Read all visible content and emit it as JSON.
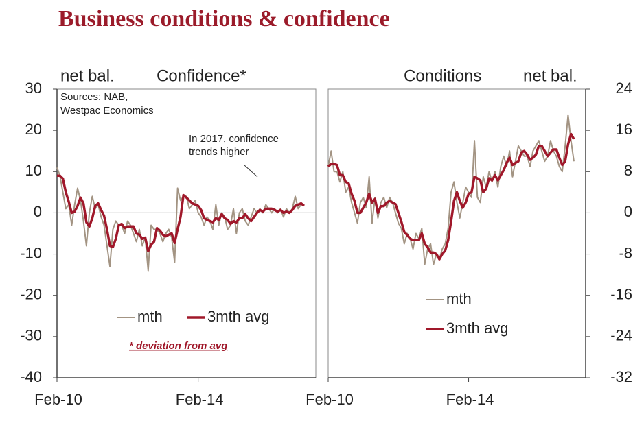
{
  "title": "Business conditions & confidence",
  "chart_data": [
    {
      "type": "line",
      "title": "Confidence*",
      "ylabel": "net bal.",
      "sources": [
        "Sources: NAB,",
        "Westpac Economics"
      ],
      "annotation": [
        "In 2017, confidence",
        "trends higher"
      ],
      "note": "* deviation from avg",
      "legend": "lower center",
      "yaxis": "left",
      "zero_line": true,
      "categories": [
        "Feb-10",
        null,
        null,
        null,
        null,
        null,
        null,
        null,
        null,
        null,
        null,
        null,
        null,
        null,
        null,
        null,
        null,
        null,
        null,
        null,
        null,
        null,
        null,
        null,
        null,
        null,
        null,
        null,
        null,
        null,
        null,
        null,
        null,
        null,
        null,
        null,
        null,
        null,
        null,
        null,
        null,
        null,
        null,
        null,
        null,
        null,
        null,
        null,
        "Feb-14",
        null,
        null,
        null,
        null,
        null,
        null,
        null,
        null,
        null,
        null,
        null,
        null,
        null,
        null,
        null,
        null,
        null,
        null,
        null,
        null,
        null,
        null,
        null,
        null,
        null,
        null,
        null,
        null,
        null,
        null,
        null,
        null,
        null,
        null,
        null,
        null
      ],
      "series": [
        {
          "name": "mth",
          "color": "#a39483",
          "width": 2,
          "values": [
            11,
            9,
            5,
            1,
            2,
            -3,
            2,
            6,
            3,
            -2,
            -8,
            0,
            4,
            1,
            2,
            -1,
            -3,
            -8,
            -13,
            -4,
            -2,
            -3,
            -3,
            -5,
            -2,
            -3,
            -5,
            -7,
            -4,
            -8,
            -6,
            -14,
            -3,
            -4,
            -4,
            -5,
            -7,
            -5,
            -4,
            -6,
            -12,
            6,
            3,
            4,
            4,
            1,
            2,
            3,
            0,
            -1,
            -3,
            -1,
            -2,
            -4,
            2,
            -3,
            0,
            -1,
            -4,
            -3,
            1,
            -5,
            0,
            1,
            -2,
            -3,
            -1,
            1,
            0,
            1,
            0,
            2,
            1,
            0,
            1,
            0,
            1,
            -1,
            1,
            0,
            1,
            4,
            1,
            2,
            2
          ]
        },
        {
          "name": "3mth avg",
          "color": "#a0182a",
          "width": 3.5,
          "values": [
            9,
            9,
            8.3,
            5,
            2.7,
            0,
            0.3,
            1.7,
            3.7,
            2.3,
            -2.3,
            -3.3,
            -1.3,
            1.7,
            2.3,
            0.7,
            -0.7,
            -4,
            -8,
            -8.3,
            -6.3,
            -3,
            -2.7,
            -3.7,
            -3.3,
            -3.3,
            -3.3,
            -5,
            -5.3,
            -6.3,
            -6,
            -9.3,
            -7.7,
            -7,
            -3.7,
            -4.3,
            -5.3,
            -5.7,
            -5.3,
            -5,
            -7.3,
            -4,
            -1,
            4.3,
            3.7,
            3,
            2.3,
            2,
            1.7,
            0.7,
            -1.3,
            -1.7,
            -2,
            -2.3,
            -1.3,
            -1.7,
            -0.3,
            -1.3,
            -1.7,
            -2.7,
            -2,
            -2.3,
            -1.3,
            -1.3,
            -0.3,
            -1.3,
            -2,
            -1,
            0,
            0.7,
            0.3,
            1,
            1,
            1,
            0.7,
            0.3,
            0.7,
            0,
            0.3,
            0,
            0.7,
            1.7,
            2,
            2.3,
            1.7
          ]
        }
      ],
      "ylim": [
        -40,
        30
      ],
      "yticks": [
        -40,
        -30,
        -20,
        -10,
        0,
        10,
        20,
        30
      ]
    },
    {
      "type": "line",
      "title": "Conditions",
      "ylabel": "net bal.",
      "legend": "lower left",
      "yaxis": "right",
      "zero_line": false,
      "categories": [
        "Feb-10",
        null,
        null,
        null,
        null,
        null,
        null,
        null,
        null,
        null,
        null,
        null,
        null,
        null,
        null,
        null,
        null,
        null,
        null,
        null,
        null,
        null,
        null,
        null,
        null,
        null,
        null,
        null,
        null,
        null,
        null,
        null,
        null,
        null,
        null,
        null,
        null,
        null,
        null,
        null,
        null,
        null,
        null,
        null,
        null,
        null,
        null,
        null,
        "Feb-14",
        null,
        null,
        null,
        null,
        null,
        null,
        null,
        null,
        null,
        null,
        null,
        null,
        null,
        null,
        null,
        null,
        null,
        null,
        null,
        null,
        null,
        null,
        null,
        null,
        null,
        null,
        null,
        null,
        null,
        null,
        null,
        null,
        null,
        null,
        null,
        null
      ],
      "series": [
        {
          "name": "mth",
          "color": "#a39483",
          "width": 2,
          "values": [
            9,
            12,
            8,
            8,
            6,
            8,
            4,
            5,
            2,
            0,
            -2,
            2,
            3,
            1,
            7,
            -2,
            3,
            -1,
            2,
            3,
            1,
            3,
            2,
            0,
            -2,
            -3,
            -6,
            -4,
            -5,
            -7,
            -4,
            -5,
            -3,
            -10,
            -7,
            -6,
            -10,
            -8,
            -9,
            -7,
            -6,
            -3,
            4,
            6,
            2,
            -1,
            2,
            5,
            4,
            3,
            14,
            3,
            2,
            7,
            5,
            8,
            6,
            8,
            5,
            9,
            11,
            9,
            12,
            7,
            10,
            13,
            12,
            11,
            11,
            9,
            12,
            13,
            14,
            12,
            10,
            11,
            14,
            12,
            11,
            9,
            8,
            13,
            19,
            14,
            10
          ]
        },
        {
          "name": "3mth avg",
          "color": "#a0182a",
          "width": 3.5,
          "values": [
            9,
            9.5,
            9.5,
            9.3,
            7.3,
            7.3,
            6,
            5.7,
            3.7,
            2.3,
            0,
            0,
            1,
            2,
            3.7,
            2,
            2.7,
            0,
            1.3,
            1.3,
            2,
            2.3,
            2,
            1.7,
            0,
            -1.7,
            -3.7,
            -4.3,
            -5,
            -5.3,
            -5.3,
            -5.3,
            -4,
            -6,
            -6.7,
            -7.7,
            -7.7,
            -8,
            -9,
            -8,
            -7.3,
            -5.3,
            -1.7,
            2.3,
            4,
            2.3,
            1,
            2,
            3.7,
            4,
            7,
            6.7,
            6.3,
            4,
            4.7,
            6.7,
            6.3,
            7.3,
            6.3,
            7.3,
            8.3,
            9.7,
            10.7,
            9.3,
            9.7,
            10,
            11.7,
            12,
            11.3,
            10.3,
            10.7,
            11.3,
            13,
            13,
            12,
            11,
            11.7,
            12.3,
            12.3,
            10.7,
            9.3,
            10,
            13.3,
            15.3,
            14.3
          ]
        }
      ],
      "ylim": [
        -32,
        24
      ],
      "yticks": [
        -32,
        -24,
        -16,
        -8,
        0,
        8,
        16,
        24
      ]
    }
  ]
}
